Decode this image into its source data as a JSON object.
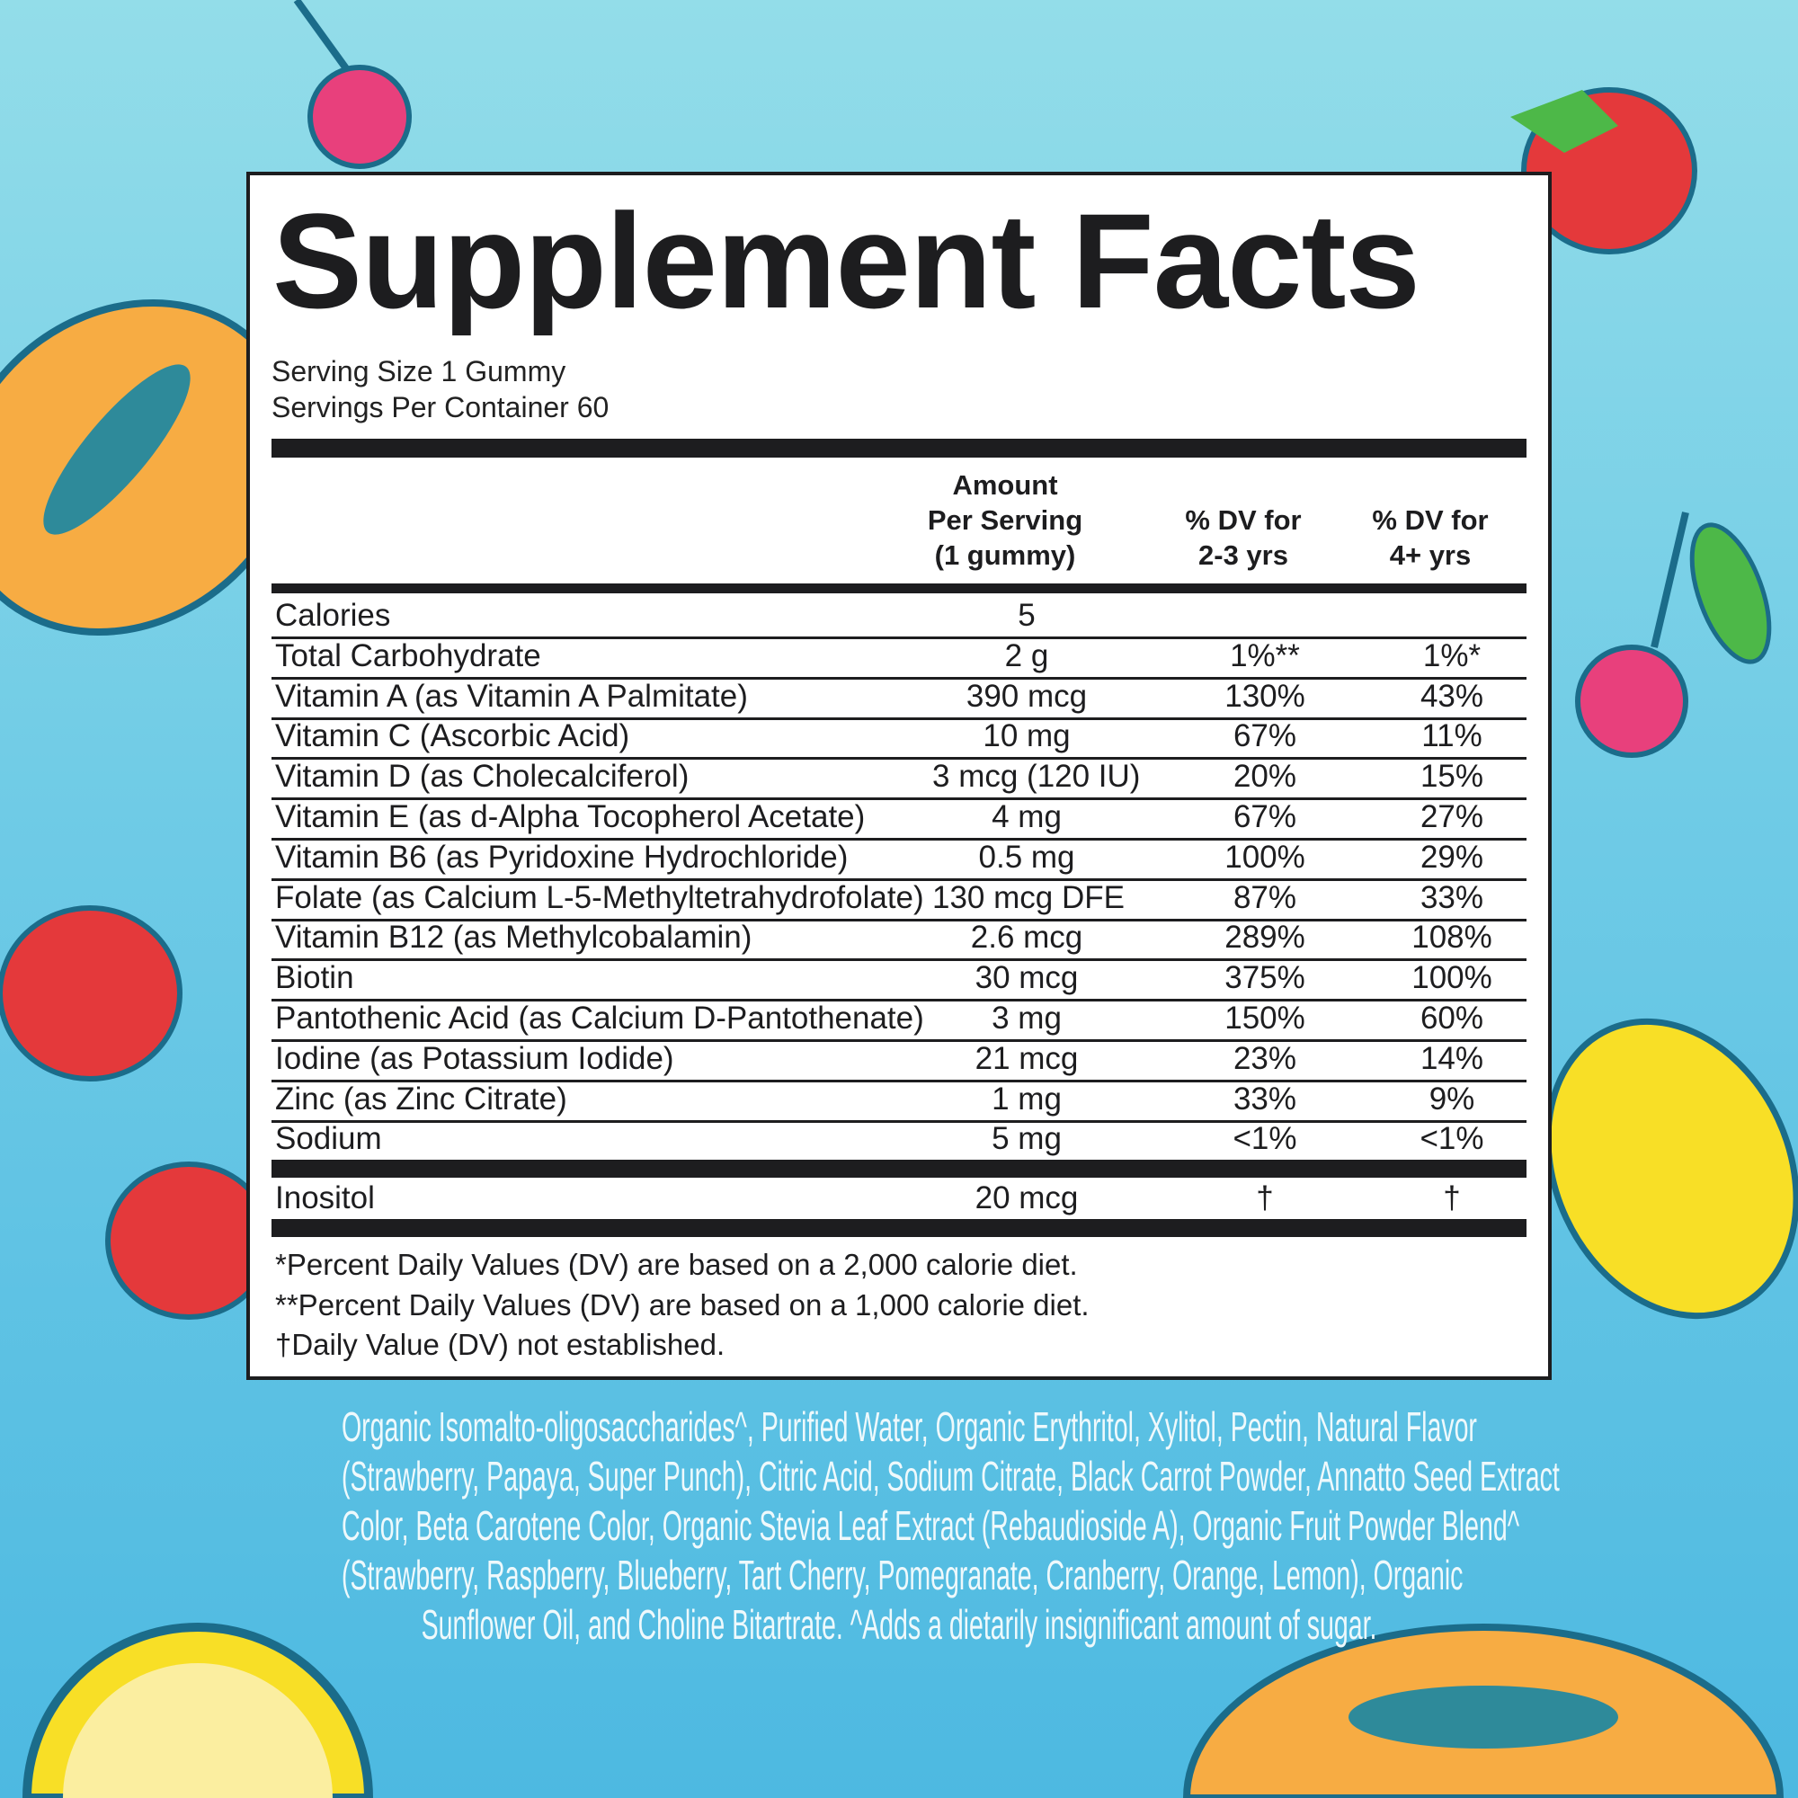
{
  "title": "Supplement Facts",
  "serving_size": "Serving Size 1 Gummy",
  "servings_per_container": "Servings Per Container 60",
  "headers": {
    "amount": [
      "Amount",
      "Per Serving",
      "(1 gummy)"
    ],
    "dv_2_3": [
      "% DV for",
      "2-3 yrs"
    ],
    "dv_4": [
      "% DV for",
      "4+ yrs"
    ]
  },
  "rows": [
    {
      "name": "Calories",
      "amount": "5",
      "dv23": "",
      "dv4": ""
    },
    {
      "name": "Total Carbohydrate",
      "amount": "2 g",
      "dv23": "1%**",
      "dv4": "1%*"
    },
    {
      "name": "Vitamin A (as Vitamin A Palmitate)",
      "amount": "390 mcg",
      "dv23": "130%",
      "dv4": "43%"
    },
    {
      "name": "Vitamin C (Ascorbic Acid)",
      "amount": "10 mg",
      "dv23": "67%",
      "dv4": "11%"
    },
    {
      "name": "Vitamin D (as Cholecalciferol)",
      "amount": "3 mcg (120 IU)",
      "dv23": "20%",
      "dv4": "15%"
    },
    {
      "name": "Vitamin E (as d-Alpha Tocopherol Acetate)",
      "amount": "4 mg",
      "dv23": "67%",
      "dv4": "27%"
    },
    {
      "name": "Vitamin B6 (as Pyridoxine Hydrochloride)",
      "amount": "0.5 mg",
      "dv23": "100%",
      "dv4": "29%"
    },
    {
      "name": "Folate (as Calcium L-5-Methyltetrahydrofolate)",
      "amount": "130 mcg DFE",
      "dv23": "87%",
      "dv4": "33%"
    },
    {
      "name": "Vitamin B12 (as Methylcobalamin)",
      "amount": "2.6 mcg",
      "dv23": "289%",
      "dv4": "108%"
    },
    {
      "name": "Biotin",
      "amount": "30 mcg",
      "dv23": "375%",
      "dv4": "100%"
    },
    {
      "name": "Pantothenic Acid (as Calcium D-Pantothenate)",
      "amount": "3 mg",
      "dv23": "150%",
      "dv4": "60%"
    },
    {
      "name": "Iodine (as Potassium Iodide)",
      "amount": "21 mcg",
      "dv23": "23%",
      "dv4": "14%"
    },
    {
      "name": "Zinc (as Zinc Citrate)",
      "amount": "1 mg",
      "dv23": "33%",
      "dv4": "9%"
    },
    {
      "name": "Sodium",
      "amount": "5 mg",
      "dv23": "<1%",
      "dv4": "<1%"
    }
  ],
  "extra_row": {
    "name": "Inositol",
    "amount": "20 mcg",
    "dv23": "†",
    "dv4": "†"
  },
  "footnotes": [
    "*Percent Daily Values (DV) are based on a 2,000 calorie diet.",
    "**Percent Daily Values (DV) are based on a 1,000 calorie diet.",
    "†Daily Value (DV) not established."
  ],
  "ingredients_lines": [
    "Organic Isomalto-oligosaccharides^, Purified Water, Organic Erythritol, Xylitol, Pectin, Natural Flavor",
    "(Strawberry, Papaya, Super Punch), Citric Acid, Sodium Citrate, Black Carrot Powder, Annatto Seed Extract",
    "Color, Beta Carotene Color, Organic Stevia Leaf Extract (Rebaudioside A), Organic Fruit Powder Blend^",
    "(Strawberry, Raspberry, Blueberry, Tart Cherry, Pomegranate, Cranberry, Orange, Lemon), Organic",
    "Sunflower Oil, and Choline Bitartrate. ^Adds a dietarily insignificant amount of sugar."
  ],
  "colors": {
    "panel_border": "#1d1d1f",
    "background_top": "#93dde9",
    "background_bottom": "#4db9e1",
    "ingredients_text": "#eef9fc"
  },
  "decorations": [
    "cherry-icon",
    "strawberry-icon",
    "papaya-icon",
    "lemon-icon"
  ]
}
